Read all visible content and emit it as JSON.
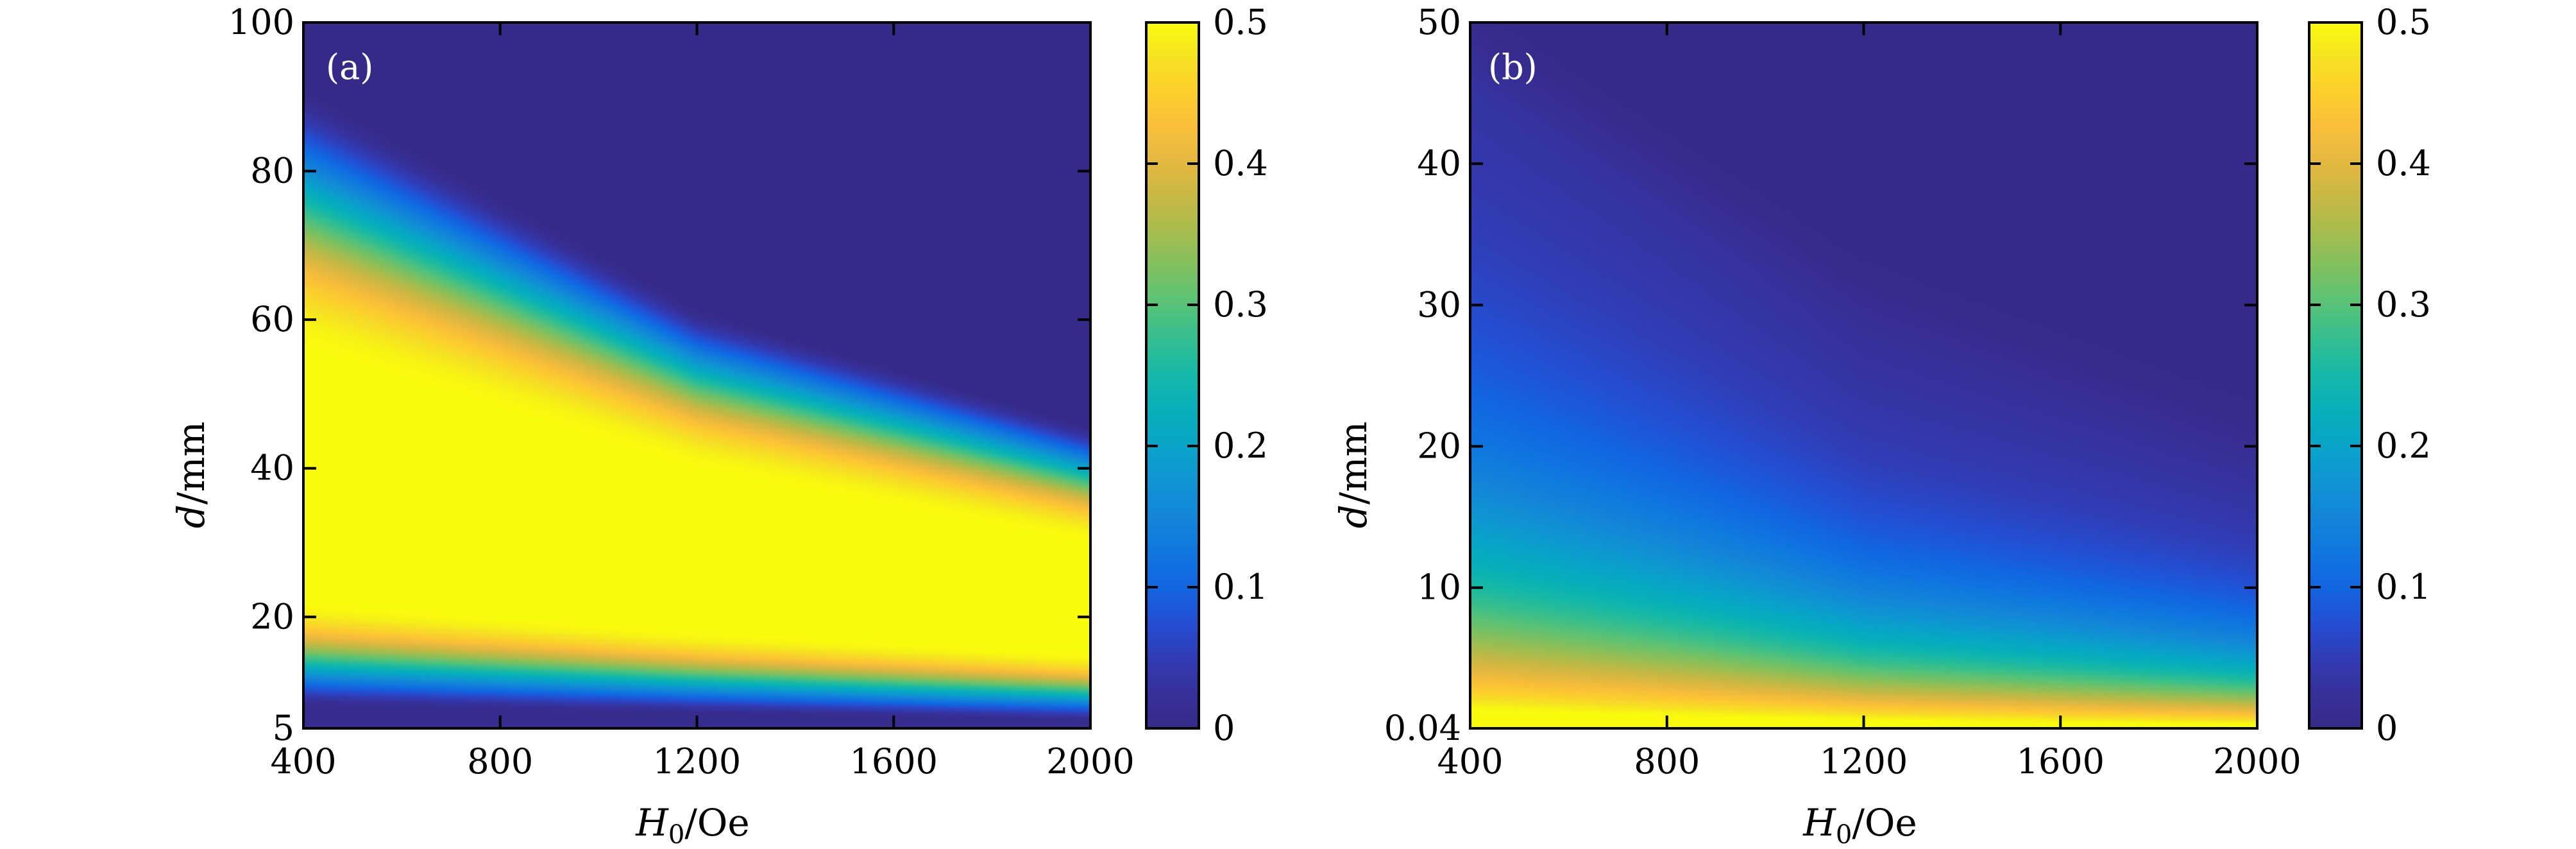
{
  "chart_data": [
    {
      "type": "heatmap",
      "panel_label": "(a)",
      "xlabel": {
        "symbol": "H",
        "subscript": "0",
        "unit": "/Oe"
      },
      "ylabel": {
        "symbol": "d",
        "unit": "/mm"
      },
      "xlim": [
        400,
        2000
      ],
      "ylim": [
        5,
        100
      ],
      "x_ticks": [
        400,
        800,
        1200,
        1600,
        2000
      ],
      "y_ticks": [
        5,
        20,
        40,
        60,
        80,
        100
      ],
      "colorbar": {
        "range": [
          0,
          0.5
        ],
        "ticks": [
          0,
          0.1,
          0.2,
          0.3,
          0.4,
          0.5
        ],
        "colormap": "parula"
      },
      "description_points": [
        {
          "x": 400,
          "peak_center_d": 38,
          "peak_upper_edge_d": 56,
          "peak_lower_edge_d": 22,
          "zero_above_d": 92,
          "near_zero_below_d": 8
        },
        {
          "x": 1200,
          "peak_center_d": 31,
          "peak_upper_edge_d": 40,
          "peak_lower_edge_d": 18,
          "zero_above_d": 62,
          "near_zero_below_d": 7
        },
        {
          "x": 2000,
          "peak_center_d": 23,
          "peak_upper_edge_d": 30,
          "peak_lower_edge_d": 15,
          "zero_above_d": 46,
          "near_zero_below_d": 6
        }
      ],
      "max_value": 0.5
    },
    {
      "type": "heatmap",
      "panel_label": "(b)",
      "xlabel": {
        "symbol": "H",
        "subscript": "0",
        "unit": "/Oe"
      },
      "ylabel": {
        "symbol": "d",
        "unit": "/mm"
      },
      "xlim": [
        400,
        2000
      ],
      "ylim": [
        0.04,
        50
      ],
      "x_ticks": [
        400,
        800,
        1200,
        1600,
        2000
      ],
      "y_ticks": [
        0.04,
        10,
        20,
        30,
        40,
        50
      ],
      "y_tick_labels": [
        "0.04",
        "10",
        "20",
        "30",
        "40",
        "50"
      ],
      "colorbar": {
        "range": [
          0,
          0.5
        ],
        "ticks": [
          0,
          0.1,
          0.2,
          0.3,
          0.4,
          0.5
        ],
        "colormap": "parula"
      },
      "description_points": [
        {
          "x": 400,
          "value_at_bottom": 0.47,
          "decay_length_d": 11,
          "zero_above_d": 46
        },
        {
          "x": 1200,
          "value_at_bottom": 0.46,
          "decay_length_d": 6,
          "zero_above_d": 28
        },
        {
          "x": 2000,
          "value_at_bottom": 0.45,
          "decay_length_d": 4,
          "zero_above_d": 18
        }
      ],
      "max_value": 0.47
    }
  ]
}
